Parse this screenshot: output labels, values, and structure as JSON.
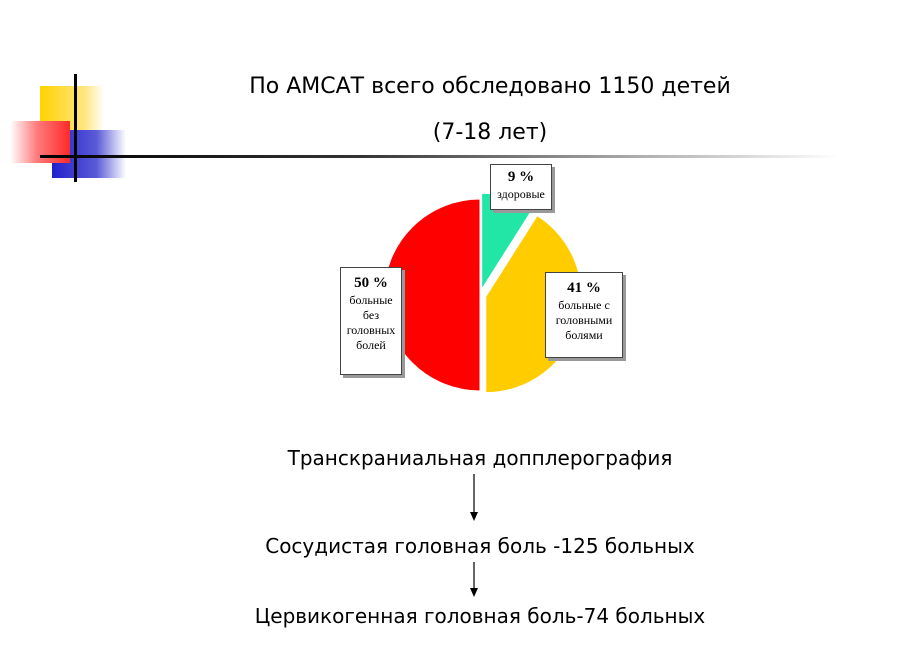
{
  "title": {
    "line1": "По АМСАТ всего обследовано 1150 детей",
    "line2": "(7-18 лет)"
  },
  "chart_data": {
    "type": "pie",
    "slices": [
      {
        "name": "здоровые",
        "value": 9,
        "label": "9 %",
        "color": "#22e6a6"
      },
      {
        "name": "больные с головными болями",
        "value": 41,
        "label": "41 %",
        "color": "#ffcc00"
      },
      {
        "name": "больные без головных болей",
        "value": 50,
        "label": "50 %",
        "color": "#ff0000"
      }
    ]
  },
  "labels": {
    "healthy": {
      "pct": "9 %",
      "lines": [
        "здоровые"
      ]
    },
    "headache": {
      "pct": "41 %",
      "lines": [
        "больные с",
        "головными",
        "болями"
      ]
    },
    "noheadache": {
      "pct": "50 %",
      "lines": [
        "больные",
        "без",
        "головных",
        "болей"
      ]
    }
  },
  "flow": {
    "step1": "Транскраниальная допплерография",
    "step2": "Сосудистая головная боль -125 больных",
    "step3": "Цервикогенная головная боль-74 больных"
  }
}
